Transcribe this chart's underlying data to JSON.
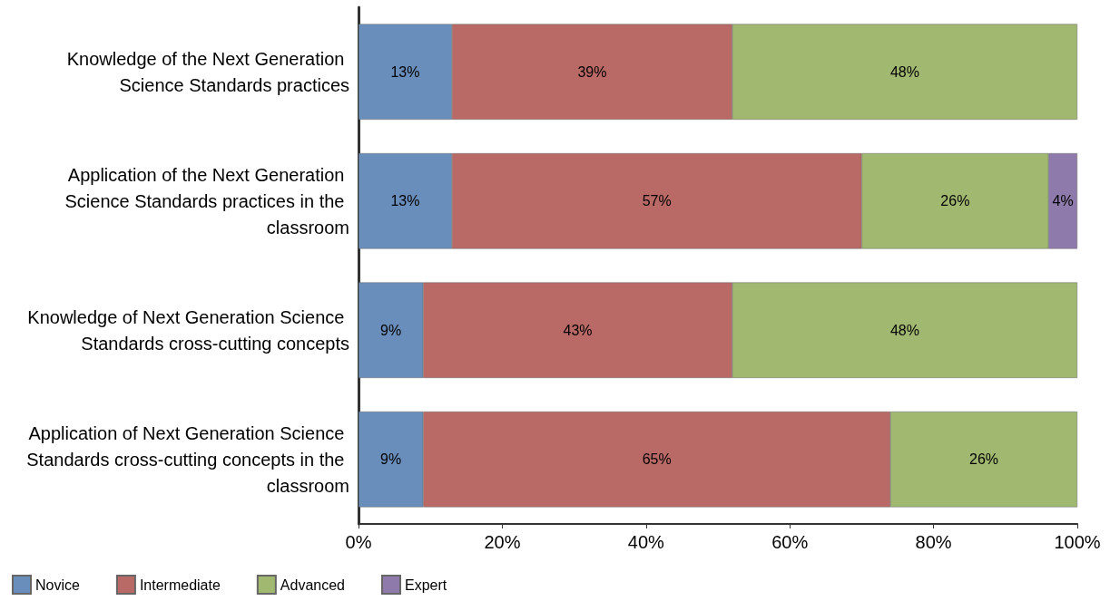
{
  "chart_data": {
    "type": "bar",
    "orientation": "horizontal",
    "stacked": true,
    "categories": [
      "Knowledge of the Next Generation Science Standards practices",
      "Application of the Next Generation Science Standards practices in the classroom",
      "Knowledge of Next Generation Science Standards cross-cutting concepts",
      "Application of Next Generation Science Standards cross-cutting concepts in the classroom"
    ],
    "series": [
      {
        "name": "Novice",
        "color": "#6a8ebb",
        "values": [
          13,
          13,
          9,
          9
        ],
        "value_labels": [
          "13%",
          "13%",
          "9%",
          "9%"
        ]
      },
      {
        "name": "Intermediate",
        "color": "#b96a66",
        "values": [
          39,
          57,
          43,
          65
        ],
        "value_labels": [
          "39%",
          "57%",
          "43%",
          "65%"
        ]
      },
      {
        "name": "Advanced",
        "color": "#a0b86f",
        "values": [
          48,
          26,
          48,
          26
        ],
        "value_labels": [
          "48%",
          "26%",
          "48%",
          "26%"
        ]
      },
      {
        "name": "Expert",
        "color": "#8f7bab",
        "values": [
          null,
          4,
          null,
          null
        ],
        "value_labels": [
          null,
          "4%",
          null,
          null
        ]
      }
    ],
    "xlim": [
      0,
      100
    ],
    "xticks": [
      {
        "value": 0,
        "label": "0%"
      },
      {
        "value": 20,
        "label": "20%"
      },
      {
        "value": 40,
        "label": "40%"
      },
      {
        "value": 60,
        "label": "60%"
      },
      {
        "value": 80,
        "label": "80%"
      },
      {
        "value": 100,
        "label": "100%"
      }
    ],
    "grid": false,
    "legend": "bottom left"
  }
}
